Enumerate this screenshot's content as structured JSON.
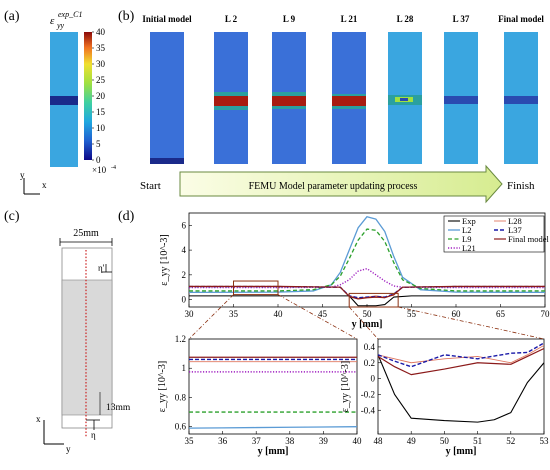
{
  "panels": {
    "a": {
      "label": "(a)",
      "strain_symbol": "ε",
      "strain_sub": "yy",
      "strain_sup": "exp_C1",
      "colorbar_ticks": [
        "40",
        "35",
        "30",
        "25",
        "20",
        "15",
        "10",
        "5",
        "0"
      ],
      "colorbar_multiplier": "×10",
      "colorbar_exp": "-4",
      "axis_y": "y",
      "axis_x": "x"
    },
    "b": {
      "label": "(b)",
      "model_labels": [
        "Initial model",
        "L 2",
        "L 9",
        "L 21",
        "L 28",
        "L 37",
        "Final model"
      ],
      "start_label": "Start",
      "process_label": "FEMU Model parameter updating process",
      "finish_label": "Finish"
    },
    "c": {
      "label": "(c)",
      "width_label": "25mm",
      "height_label": "13mm",
      "eta_top": "η'",
      "eta_bottom": "η",
      "axis_x": "x",
      "axis_y": "y"
    },
    "d": {
      "label": "(d)",
      "legend": [
        "Exp",
        "L2",
        "L9",
        "L21",
        "L28",
        "L37",
        "Final model"
      ]
    }
  },
  "colors": {
    "exp": "#000000",
    "L2": "#5b9bd5",
    "L9": "#2ca02c",
    "L21": "#a020c0",
    "L28": "#e07860",
    "L37": "#1a1aa8",
    "final": "#8b1a1a",
    "bg_blue": "#3aa6e0",
    "band_dark": "#1a2a8a",
    "band_red": "#a81c10"
  },
  "chart_data": [
    {
      "type": "line",
      "title": "",
      "xlabel": "y [mm]",
      "ylabel": "ε_yy [10^-3]",
      "xlim": [
        30,
        70
      ],
      "ylim": [
        -0.6,
        7
      ],
      "xticks": [
        30,
        35,
        40,
        45,
        50,
        55,
        60,
        65,
        70
      ],
      "yticks": [
        0,
        2,
        4,
        6
      ],
      "legend_position": "top-right",
      "series": [
        {
          "name": "Exp",
          "x": [
            30,
            40,
            45,
            47,
            48,
            49,
            50,
            51,
            52,
            53,
            55,
            60,
            70
          ],
          "y": [
            0.3,
            0.3,
            0.3,
            0.3,
            0.3,
            -0.5,
            -0.5,
            -0.5,
            -0.4,
            0.2,
            0.3,
            0.3,
            0.3
          ]
        },
        {
          "name": "L2",
          "x": [
            30,
            40,
            44,
            46,
            47,
            48,
            49,
            50,
            51,
            52,
            53,
            54,
            56,
            60,
            70
          ],
          "y": [
            0.58,
            0.6,
            0.7,
            1.2,
            2.2,
            4.0,
            5.8,
            6.7,
            6.5,
            5.5,
            3.5,
            1.8,
            0.8,
            0.6,
            0.58
          ]
        },
        {
          "name": "L9",
          "x": [
            30,
            40,
            44,
            46,
            47,
            48,
            49,
            50,
            51,
            52,
            53,
            54,
            56,
            60,
            70
          ],
          "y": [
            0.7,
            0.7,
            0.8,
            1.2,
            1.9,
            3.3,
            4.8,
            5.7,
            5.6,
            4.7,
            3.0,
            1.6,
            0.9,
            0.7,
            0.7
          ]
        },
        {
          "name": "L21",
          "x": [
            30,
            40,
            46,
            47,
            48,
            49,
            50,
            51,
            52,
            53,
            54,
            60,
            70
          ],
          "y": [
            0.97,
            0.97,
            1.0,
            1.2,
            1.6,
            2.3,
            2.5,
            2.0,
            1.5,
            1.1,
            1.0,
            0.97,
            0.97
          ]
        },
        {
          "name": "L28",
          "x": [
            30,
            40,
            47,
            48,
            49,
            50,
            51,
            52,
            53,
            54,
            60,
            70
          ],
          "y": [
            1.03,
            1.03,
            1.0,
            0.3,
            0.1,
            0.2,
            0.3,
            0.2,
            0.35,
            1.0,
            1.03,
            1.03
          ]
        },
        {
          "name": "L37",
          "x": [
            30,
            40,
            47,
            48,
            49,
            50,
            51,
            52,
            53,
            54,
            60,
            70
          ],
          "y": [
            1.05,
            1.05,
            1.0,
            0.3,
            0.15,
            0.2,
            0.25,
            0.2,
            0.45,
            1.0,
            1.05,
            1.05
          ]
        },
        {
          "name": "Final model",
          "x": [
            30,
            40,
            47,
            48,
            49,
            50,
            51,
            52,
            53,
            54,
            60,
            70
          ],
          "y": [
            1.07,
            1.07,
            1.0,
            0.25,
            0.05,
            0.15,
            0.2,
            0.15,
            0.4,
            1.0,
            1.07,
            1.07
          ]
        }
      ]
    },
    {
      "type": "line",
      "title": "",
      "xlabel": "y [mm]",
      "ylabel": "ε_yy [10^-3]",
      "xlim": [
        35,
        40
      ],
      "ylim": [
        0.55,
        1.2
      ],
      "xticks": [
        35,
        36,
        37,
        38,
        39,
        40
      ],
      "yticks": [
        0.6,
        0.8,
        1,
        1.2
      ],
      "series": [
        {
          "name": "L2",
          "x": [
            35,
            36,
            37,
            38,
            39,
            40
          ],
          "y": [
            0.59,
            0.592,
            0.594,
            0.596,
            0.598,
            0.6
          ]
        },
        {
          "name": "L9",
          "x": [
            35,
            36,
            37,
            38,
            39,
            40
          ],
          "y": [
            0.7,
            0.7,
            0.7,
            0.7,
            0.7,
            0.7
          ]
        },
        {
          "name": "L21",
          "x": [
            35,
            36,
            37,
            38,
            39,
            40
          ],
          "y": [
            0.975,
            0.975,
            0.975,
            0.975,
            0.975,
            0.975
          ]
        },
        {
          "name": "L28",
          "x": [
            35,
            36,
            37,
            38,
            39,
            40
          ],
          "y": [
            1.045,
            1.045,
            1.045,
            1.045,
            1.045,
            1.045
          ]
        },
        {
          "name": "L37",
          "x": [
            35,
            36,
            37,
            38,
            39,
            40
          ],
          "y": [
            1.06,
            1.06,
            1.06,
            1.06,
            1.06,
            1.06
          ]
        },
        {
          "name": "Final model",
          "x": [
            35,
            36,
            37,
            38,
            39,
            40
          ],
          "y": [
            1.075,
            1.075,
            1.075,
            1.075,
            1.075,
            1.075
          ]
        }
      ]
    },
    {
      "type": "line",
      "title": "",
      "xlabel": "y [mm]",
      "ylabel": "ε_yy [10^-3]",
      "xlim": [
        48,
        53
      ],
      "ylim": [
        -0.7,
        0.5
      ],
      "xticks": [
        48,
        49,
        50,
        51,
        52,
        53
      ],
      "yticks": [
        -0.4,
        -0.2,
        0,
        0.2,
        0.4
      ],
      "series": [
        {
          "name": "Exp",
          "x": [
            48,
            48.5,
            49,
            50,
            51,
            51.5,
            52,
            52.5,
            53
          ],
          "y": [
            0.3,
            -0.2,
            -0.5,
            -0.53,
            -0.55,
            -0.52,
            -0.43,
            -0.05,
            0.2
          ]
        },
        {
          "name": "L28",
          "x": [
            48,
            48.5,
            49,
            50,
            51,
            52,
            52.5,
            53
          ],
          "y": [
            0.3,
            0.25,
            0.2,
            0.25,
            0.28,
            0.2,
            0.3,
            0.42
          ]
        },
        {
          "name": "L37",
          "x": [
            48,
            48.5,
            49,
            50,
            51,
            52,
            52.5,
            53
          ],
          "y": [
            0.3,
            0.22,
            0.15,
            0.3,
            0.25,
            0.32,
            0.33,
            0.45
          ]
        },
        {
          "name": "Final model",
          "x": [
            48,
            48.5,
            49,
            50,
            51,
            52,
            52.5,
            53
          ],
          "y": [
            0.28,
            0.15,
            0.05,
            0.12,
            0.2,
            0.18,
            0.28,
            0.38
          ]
        }
      ]
    }
  ]
}
